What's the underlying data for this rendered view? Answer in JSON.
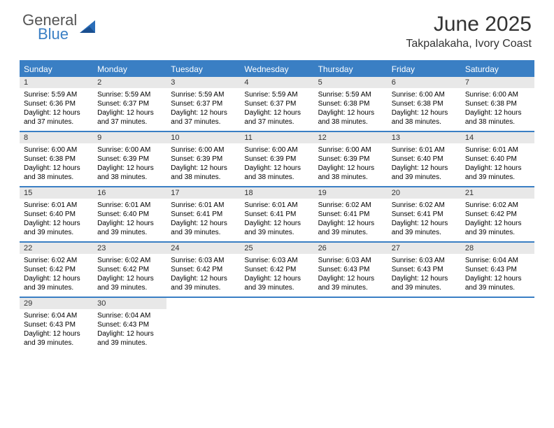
{
  "brand": {
    "general": "General",
    "blue": "Blue"
  },
  "title": "June 2025",
  "location": "Takpalakaha, Ivory Coast",
  "colors": {
    "accent": "#3a7fc4",
    "daynum_bg": "#e8e8e8",
    "text": "#000000"
  },
  "weekdays": [
    "Sunday",
    "Monday",
    "Tuesday",
    "Wednesday",
    "Thursday",
    "Friday",
    "Saturday"
  ],
  "weeks": [
    [
      {
        "n": "1",
        "sr": "Sunrise: 5:59 AM",
        "ss": "Sunset: 6:36 PM",
        "dl": "Daylight: 12 hours and 37 minutes."
      },
      {
        "n": "2",
        "sr": "Sunrise: 5:59 AM",
        "ss": "Sunset: 6:37 PM",
        "dl": "Daylight: 12 hours and 37 minutes."
      },
      {
        "n": "3",
        "sr": "Sunrise: 5:59 AM",
        "ss": "Sunset: 6:37 PM",
        "dl": "Daylight: 12 hours and 37 minutes."
      },
      {
        "n": "4",
        "sr": "Sunrise: 5:59 AM",
        "ss": "Sunset: 6:37 PM",
        "dl": "Daylight: 12 hours and 37 minutes."
      },
      {
        "n": "5",
        "sr": "Sunrise: 5:59 AM",
        "ss": "Sunset: 6:38 PM",
        "dl": "Daylight: 12 hours and 38 minutes."
      },
      {
        "n": "6",
        "sr": "Sunrise: 6:00 AM",
        "ss": "Sunset: 6:38 PM",
        "dl": "Daylight: 12 hours and 38 minutes."
      },
      {
        "n": "7",
        "sr": "Sunrise: 6:00 AM",
        "ss": "Sunset: 6:38 PM",
        "dl": "Daylight: 12 hours and 38 minutes."
      }
    ],
    [
      {
        "n": "8",
        "sr": "Sunrise: 6:00 AM",
        "ss": "Sunset: 6:38 PM",
        "dl": "Daylight: 12 hours and 38 minutes."
      },
      {
        "n": "9",
        "sr": "Sunrise: 6:00 AM",
        "ss": "Sunset: 6:39 PM",
        "dl": "Daylight: 12 hours and 38 minutes."
      },
      {
        "n": "10",
        "sr": "Sunrise: 6:00 AM",
        "ss": "Sunset: 6:39 PM",
        "dl": "Daylight: 12 hours and 38 minutes."
      },
      {
        "n": "11",
        "sr": "Sunrise: 6:00 AM",
        "ss": "Sunset: 6:39 PM",
        "dl": "Daylight: 12 hours and 38 minutes."
      },
      {
        "n": "12",
        "sr": "Sunrise: 6:00 AM",
        "ss": "Sunset: 6:39 PM",
        "dl": "Daylight: 12 hours and 38 minutes."
      },
      {
        "n": "13",
        "sr": "Sunrise: 6:01 AM",
        "ss": "Sunset: 6:40 PM",
        "dl": "Daylight: 12 hours and 39 minutes."
      },
      {
        "n": "14",
        "sr": "Sunrise: 6:01 AM",
        "ss": "Sunset: 6:40 PM",
        "dl": "Daylight: 12 hours and 39 minutes."
      }
    ],
    [
      {
        "n": "15",
        "sr": "Sunrise: 6:01 AM",
        "ss": "Sunset: 6:40 PM",
        "dl": "Daylight: 12 hours and 39 minutes."
      },
      {
        "n": "16",
        "sr": "Sunrise: 6:01 AM",
        "ss": "Sunset: 6:40 PM",
        "dl": "Daylight: 12 hours and 39 minutes."
      },
      {
        "n": "17",
        "sr": "Sunrise: 6:01 AM",
        "ss": "Sunset: 6:41 PM",
        "dl": "Daylight: 12 hours and 39 minutes."
      },
      {
        "n": "18",
        "sr": "Sunrise: 6:01 AM",
        "ss": "Sunset: 6:41 PM",
        "dl": "Daylight: 12 hours and 39 minutes."
      },
      {
        "n": "19",
        "sr": "Sunrise: 6:02 AM",
        "ss": "Sunset: 6:41 PM",
        "dl": "Daylight: 12 hours and 39 minutes."
      },
      {
        "n": "20",
        "sr": "Sunrise: 6:02 AM",
        "ss": "Sunset: 6:41 PM",
        "dl": "Daylight: 12 hours and 39 minutes."
      },
      {
        "n": "21",
        "sr": "Sunrise: 6:02 AM",
        "ss": "Sunset: 6:42 PM",
        "dl": "Daylight: 12 hours and 39 minutes."
      }
    ],
    [
      {
        "n": "22",
        "sr": "Sunrise: 6:02 AM",
        "ss": "Sunset: 6:42 PM",
        "dl": "Daylight: 12 hours and 39 minutes."
      },
      {
        "n": "23",
        "sr": "Sunrise: 6:02 AM",
        "ss": "Sunset: 6:42 PM",
        "dl": "Daylight: 12 hours and 39 minutes."
      },
      {
        "n": "24",
        "sr": "Sunrise: 6:03 AM",
        "ss": "Sunset: 6:42 PM",
        "dl": "Daylight: 12 hours and 39 minutes."
      },
      {
        "n": "25",
        "sr": "Sunrise: 6:03 AM",
        "ss": "Sunset: 6:42 PM",
        "dl": "Daylight: 12 hours and 39 minutes."
      },
      {
        "n": "26",
        "sr": "Sunrise: 6:03 AM",
        "ss": "Sunset: 6:43 PM",
        "dl": "Daylight: 12 hours and 39 minutes."
      },
      {
        "n": "27",
        "sr": "Sunrise: 6:03 AM",
        "ss": "Sunset: 6:43 PM",
        "dl": "Daylight: 12 hours and 39 minutes."
      },
      {
        "n": "28",
        "sr": "Sunrise: 6:04 AM",
        "ss": "Sunset: 6:43 PM",
        "dl": "Daylight: 12 hours and 39 minutes."
      }
    ],
    [
      {
        "n": "29",
        "sr": "Sunrise: 6:04 AM",
        "ss": "Sunset: 6:43 PM",
        "dl": "Daylight: 12 hours and 39 minutes."
      },
      {
        "n": "30",
        "sr": "Sunrise: 6:04 AM",
        "ss": "Sunset: 6:43 PM",
        "dl": "Daylight: 12 hours and 39 minutes."
      },
      {
        "empty": true
      },
      {
        "empty": true
      },
      {
        "empty": true
      },
      {
        "empty": true
      },
      {
        "empty": true
      }
    ]
  ]
}
